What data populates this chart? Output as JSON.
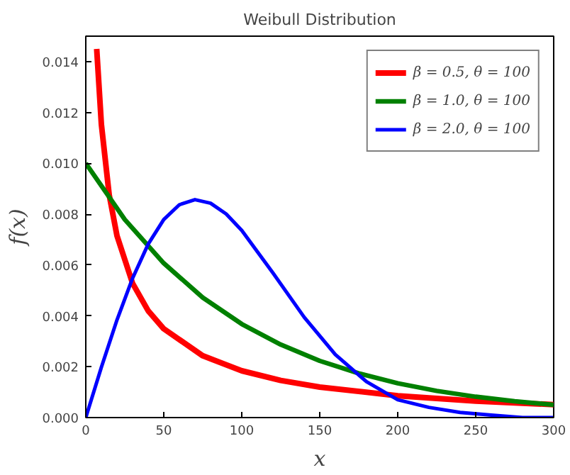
{
  "chart_data": {
    "type": "line",
    "title": "Weibull Distribution",
    "xlabel": "x",
    "ylabel": "f(x)",
    "xlim": [
      0,
      300
    ],
    "ylim": [
      0,
      0.015
    ],
    "xticks": [
      0,
      50,
      100,
      150,
      200,
      250,
      300
    ],
    "yticks": [
      {
        "value": 0,
        "label": "0.000"
      },
      {
        "value": 0.002,
        "label": "0.002"
      },
      {
        "value": 0.004,
        "label": "0.004"
      },
      {
        "value": 0.006,
        "label": "0.006"
      },
      {
        "value": 0.008,
        "label": "0.008"
      },
      {
        "value": 0.01,
        "label": "0.010"
      },
      {
        "value": 0.012,
        "label": "0.012"
      },
      {
        "value": 0.014,
        "label": "0.014"
      }
    ],
    "grid": false,
    "legend": "top right",
    "line_style": "solid",
    "marker": "none",
    "series": [
      {
        "name": "β = 0.5, θ = 100",
        "color": "#ff0000",
        "x": [
          7,
          10,
          15,
          20,
          30,
          40,
          50,
          75,
          100,
          125,
          150,
          200,
          250,
          300
        ],
        "values": [
          0.0145,
          0.01153,
          0.00876,
          0.00715,
          0.00528,
          0.0042,
          0.00349,
          0.00243,
          0.00184,
          0.00146,
          0.0012,
          0.00086,
          0.00065,
          0.00051
        ]
      },
      {
        "name": "β = 1.0, θ = 100",
        "color": "#008000",
        "x": [
          0,
          25,
          50,
          75,
          100,
          125,
          150,
          175,
          200,
          225,
          250,
          275,
          300
        ],
        "values": [
          0.01,
          0.00779,
          0.00607,
          0.00472,
          0.00368,
          0.00287,
          0.00223,
          0.00174,
          0.00135,
          0.00105,
          0.00082,
          0.00064,
          0.0005
        ]
      },
      {
        "name": "β = 2.0, θ = 100",
        "color": "#0000ff",
        "x": [
          0,
          10,
          20,
          30,
          40,
          50,
          60,
          70,
          80,
          90,
          100,
          120,
          140,
          160,
          180,
          200,
          220,
          240,
          260,
          280,
          300
        ],
        "values": [
          0,
          0.00198,
          0.00384,
          0.00548,
          0.00682,
          0.00779,
          0.00837,
          0.00857,
          0.00843,
          0.00801,
          0.00736,
          0.00569,
          0.00395,
          0.00248,
          0.00141,
          0.0007,
          0.0004,
          0.0002,
          0.0001,
          0,
          0
        ]
      }
    ]
  }
}
